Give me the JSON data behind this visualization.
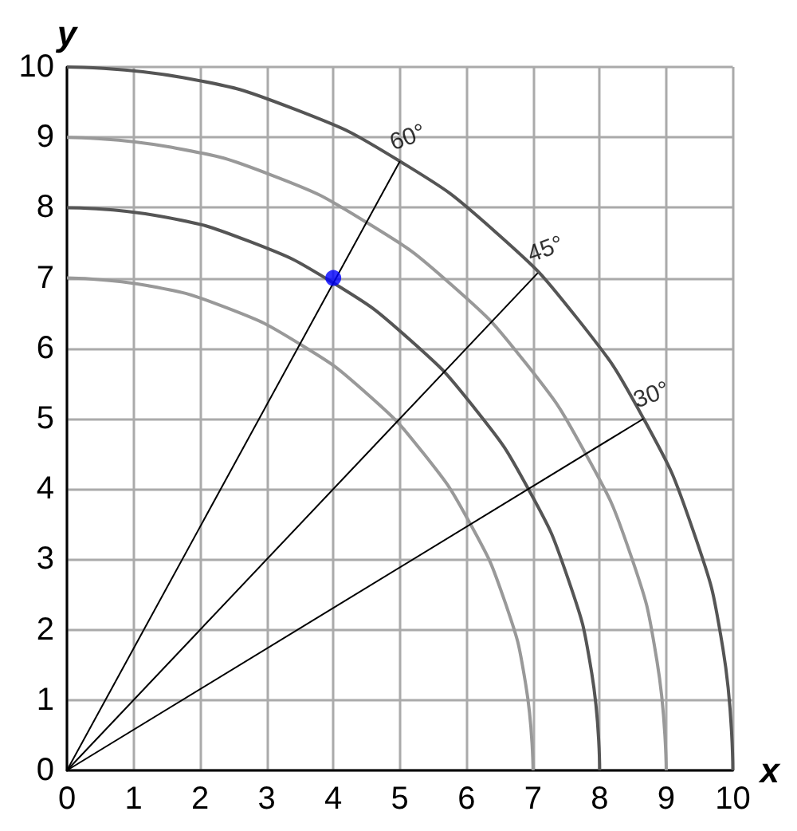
{
  "chart_data": {
    "type": "line",
    "xlabel": "x",
    "ylabel": "y",
    "xlim": [
      0,
      10
    ],
    "ylim": [
      0,
      10
    ],
    "xticks": [
      0,
      1,
      2,
      3,
      4,
      5,
      6,
      7,
      8,
      9,
      10
    ],
    "yticks": [
      0,
      1,
      2,
      3,
      4,
      5,
      6,
      7,
      8,
      9,
      10
    ],
    "grid": true,
    "marker": "none",
    "series": [
      {
        "color": "#999999",
        "x": [
          7,
          6.89,
          6.58,
          6.06,
          5.36,
          4.5,
          3.5,
          2.39,
          1.22,
          0
        ],
        "values": [
          0,
          1.22,
          2.39,
          3.5,
          4.5,
          5.36,
          6.06,
          6.58,
          6.89,
          7
        ]
      },
      {
        "color": "#555555",
        "x": [
          8,
          7.88,
          7.52,
          6.93,
          6.13,
          5.14,
          4,
          2.74,
          1.39,
          0
        ],
        "values": [
          0,
          1.39,
          2.74,
          4,
          5.14,
          6.13,
          6.93,
          7.52,
          7.88,
          8
        ]
      },
      {
        "color": "#999999",
        "x": [
          9,
          8.86,
          8.46,
          7.79,
          6.89,
          5.79,
          4.5,
          3.08,
          1.56,
          0
        ],
        "values": [
          0,
          1.56,
          3.08,
          4.5,
          5.79,
          6.89,
          7.79,
          8.46,
          8.86,
          9
        ]
      },
      {
        "color": "#555555",
        "x": [
          10,
          9.85,
          9.4,
          8.66,
          7.66,
          6.43,
          5,
          3.42,
          1.74,
          0
        ],
        "values": [
          0,
          1.74,
          3.42,
          5,
          6.43,
          7.66,
          8.66,
          9.4,
          9.85,
          10
        ]
      },
      {
        "color": "#000000",
        "x": [
          0,
          5
        ],
        "values": [
          0,
          8.66
        ]
      },
      {
        "color": "#000000",
        "x": [
          0,
          7.07
        ],
        "values": [
          0,
          7.07
        ]
      },
      {
        "color": "#000000",
        "x": [
          0,
          8.66
        ],
        "values": [
          0,
          5
        ]
      },
      {
        "type": "scatter",
        "marker": "circle",
        "color": "#0000ff",
        "x": [
          4
        ],
        "values": [
          7
        ]
      }
    ],
    "annotations": [
      {
        "text": "60°",
        "x": 5,
        "y": 8.66
      },
      {
        "text": "45°",
        "x": 7.07,
        "y": 7.07
      },
      {
        "text": "30°",
        "x": 8.66,
        "y": 5
      }
    ]
  }
}
